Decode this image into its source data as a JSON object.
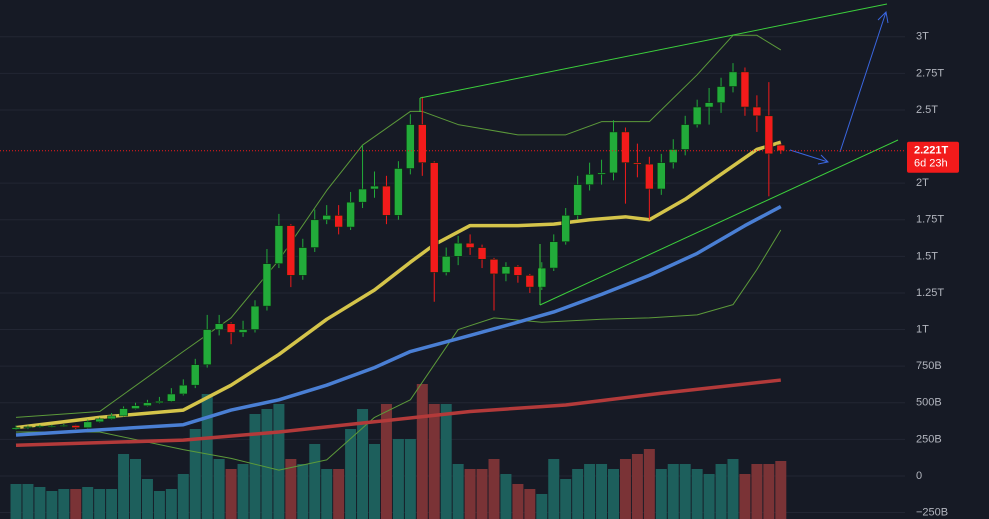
{
  "chart_data": {
    "type": "candlestick",
    "ylim": [
      -294,
      3251
    ],
    "yticks": [
      {
        "value": 3000,
        "label": "3T"
      },
      {
        "value": 2750,
        "label": "2.75T"
      },
      {
        "value": 2500,
        "label": "2.5T"
      },
      {
        "value": 2000,
        "label": "2T"
      },
      {
        "value": 1750,
        "label": "1.75T"
      },
      {
        "value": 1500,
        "label": "1.5T"
      },
      {
        "value": 1250,
        "label": "1.25T"
      },
      {
        "value": 1000,
        "label": "1T"
      },
      {
        "value": 750,
        "label": "750B"
      },
      {
        "value": 500,
        "label": "500B"
      },
      {
        "value": 250,
        "label": "250B"
      },
      0,
      {
        "value": -250,
        "label": "−250B"
      }
    ],
    "grid": true,
    "up_color": "#22ab3a",
    "down_color": "#f21b1b",
    "open": [
      320,
      330,
      335,
      340,
      340,
      345,
      330,
      370,
      390,
      410,
      460,
      480,
      500,
      510,
      560,
      620,
      760,
      1000,
      1040,
      980,
      1000,
      1160,
      1450,
      1710,
      1370,
      1560,
      1750,
      1780,
      1700,
      1870,
      1960,
      1980,
      1780,
      2100,
      2400,
      2140,
      1390,
      1500,
      1590,
      1560,
      1480,
      1380,
      1430,
      1370,
      1290,
      1420,
      1600,
      1780,
      1990,
      2060,
      2070,
      2350,
      2140,
      2130,
      1960,
      2140,
      2230,
      2400,
      2520,
      2550,
      2660,
      2760,
      2520,
      2460,
      2260
    ],
    "high": [
      345,
      345,
      350,
      350,
      355,
      350,
      385,
      400,
      430,
      475,
      500,
      520,
      540,
      600,
      660,
      800,
      1100,
      1100,
      1050,
      1060,
      1200,
      1550,
      1790,
      1720,
      1620,
      1820,
      1850,
      1850,
      1940,
      2260,
      2080,
      2050,
      2150,
      2470,
      2590,
      2150,
      1560,
      1640,
      1650,
      1580,
      1490,
      1460,
      1440,
      1380,
      1460,
      1650,
      1830,
      2050,
      2140,
      2160,
      2430,
      2380,
      2270,
      2180,
      2200,
      2300,
      2460,
      2570,
      2650,
      2720,
      2820,
      2790,
      2600,
      2690,
      2270
    ],
    "low": [
      315,
      320,
      328,
      330,
      335,
      320,
      325,
      365,
      385,
      405,
      455,
      475,
      495,
      505,
      550,
      600,
      740,
      960,
      900,
      950,
      980,
      1130,
      1420,
      1290,
      1340,
      1530,
      1720,
      1650,
      1680,
      1830,
      1900,
      1720,
      1750,
      2060,
      2050,
      1190,
      1370,
      1440,
      1510,
      1420,
      1130,
      1330,
      1320,
      1250,
      1270,
      1400,
      1580,
      1750,
      1950,
      1990,
      2020,
      1860,
      2040,
      1750,
      1920,
      2100,
      2190,
      2380,
      2400,
      2480,
      2620,
      2460,
      2350,
      1910,
      2200
    ],
    "close": [
      330,
      335,
      340,
      340,
      345,
      330,
      370,
      390,
      410,
      460,
      480,
      500,
      510,
      560,
      620,
      760,
      1000,
      1040,
      980,
      1000,
      1160,
      1450,
      1710,
      1370,
      1560,
      1750,
      1780,
      1700,
      1870,
      1960,
      1980,
      1780,
      2100,
      2400,
      2140,
      1390,
      1500,
      1590,
      1560,
      1480,
      1380,
      1430,
      1370,
      1290,
      1420,
      1600,
      1780,
      1990,
      2060,
      2070,
      2350,
      2140,
      2130,
      1960,
      2140,
      2230,
      2400,
      2520,
      2550,
      2660,
      2760,
      2520,
      2460,
      2200,
      2221
    ],
    "volume": {
      "up_color": "#1d5f5c",
      "down_color": "#7a3336",
      "values": [
        35,
        35,
        32,
        28,
        30,
        30,
        32,
        30,
        30,
        65,
        60,
        40,
        28,
        30,
        45,
        90,
        125,
        60,
        50,
        55,
        105,
        110,
        115,
        60,
        55,
        75,
        50,
        50,
        90,
        110,
        75,
        115,
        80,
        80,
        135,
        115,
        115,
        55,
        50,
        50,
        60,
        45,
        35,
        30,
        25,
        60,
        40,
        50,
        55,
        55,
        50,
        60,
        65,
        70,
        50,
        55,
        55,
        50,
        45,
        55,
        60,
        45,
        55,
        55,
        58
      ]
    },
    "lines": [
      {
        "color": "#5c9a3a",
        "band": true,
        "x": [
          0,
          7,
          14,
          18,
          22,
          26,
          29,
          33,
          34,
          37,
          42,
          46,
          49,
          53,
          57,
          60,
          62,
          64
        ],
        "values": [
          400,
          440,
          850,
          1080,
          1475,
          1950,
          2260,
          2490,
          2490,
          2400,
          2330,
          2330,
          2420,
          2420,
          2740,
          3010,
          3010,
          2910
        ]
      },
      {
        "color": "#5c9a3a",
        "band": true,
        "x": [
          0,
          7,
          14,
          18,
          22,
          26,
          30,
          33,
          37,
          40,
          44,
          49,
          53,
          57,
          60,
          62,
          64
        ],
        "values": [
          300,
          300,
          180,
          120,
          40,
          110,
          400,
          520,
          1000,
          1080,
          1050,
          1070,
          1080,
          1100,
          1170,
          1410,
          1680
        ]
      },
      {
        "color": "#b33a3a",
        "x": [
          0,
          14,
          22,
          30,
          38,
          46,
          54,
          64
        ],
        "values": [
          210,
          245,
          300,
          370,
          440,
          485,
          565,
          655
        ]
      },
      {
        "color": "#4a7fd4",
        "x": [
          0,
          14,
          18,
          22,
          26,
          30,
          33,
          38,
          42,
          45,
          49,
          53,
          57,
          61,
          64
        ],
        "values": [
          280,
          350,
          450,
          520,
          620,
          740,
          850,
          960,
          1050,
          1120,
          1240,
          1370,
          1520,
          1710,
          1840
        ]
      },
      {
        "color": "#d4c44a",
        "x": [
          0,
          7,
          14,
          18,
          22,
          26,
          30,
          33,
          35,
          38,
          42,
          45,
          48,
          51,
          53,
          56,
          59,
          62,
          64
        ],
        "values": [
          330,
          400,
          450,
          620,
          830,
          1070,
          1270,
          1460,
          1580,
          1710,
          1710,
          1720,
          1750,
          1770,
          1750,
          1890,
          2060,
          2230,
          2280
        ]
      }
    ],
    "last_price": {
      "value": 2221,
      "label": "2.221T"
    },
    "countdown": "6d 23h",
    "price_line_color": "#f21b1b"
  }
}
